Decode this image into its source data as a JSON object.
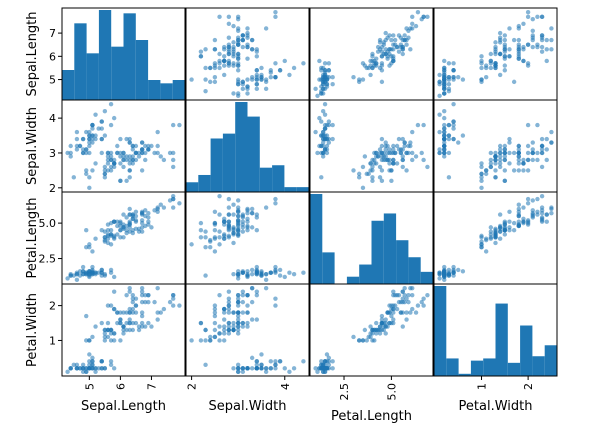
{
  "chart_data": {
    "type": "scatter_matrix",
    "variables": [
      "Sepal.Length",
      "Sepal.Width",
      "Petal.Length",
      "Petal.Width"
    ],
    "color": "#1f77b4",
    "ranges": [
      [
        4.3,
        7.9
      ],
      [
        2.0,
        4.4
      ],
      [
        1.0,
        6.9
      ],
      [
        0.1,
        2.5
      ]
    ],
    "row_ticks": [
      {
        "values": [
          5,
          6,
          7
        ],
        "labels": [
          "5",
          "6",
          "7"
        ]
      },
      {
        "values": [
          2,
          3,
          4
        ],
        "labels": [
          "2",
          "3",
          "4"
        ]
      },
      {
        "values": [
          2.5,
          5.0
        ],
        "labels": [
          "2.5",
          "5.0"
        ]
      },
      {
        "values": [
          1,
          2
        ],
        "labels": [
          "1",
          "2"
        ]
      }
    ],
    "col_ticks": [
      {
        "values": [
          5,
          6,
          7
        ],
        "labels": [
          "5",
          "6",
          "7"
        ]
      },
      {
        "values": [
          2,
          4
        ],
        "labels": [
          "2",
          "4"
        ]
      },
      {
        "values": [
          2.5,
          5.0
        ],
        "labels": [
          "2.5",
          "5.0"
        ]
      },
      {
        "values": [
          1,
          2
        ],
        "labels": [
          "1",
          "2"
        ]
      }
    ],
    "histograms": [
      {
        "variable": "Sepal.Length",
        "counts": [
          9,
          23,
          14,
          27,
          16,
          26,
          18,
          6,
          5,
          6
        ]
      },
      {
        "variable": "Sepal.Width",
        "counts": [
          4,
          7,
          22,
          24,
          37,
          31,
          10,
          11,
          2,
          2
        ]
      },
      {
        "variable": "Petal.Length",
        "counts": [
          37,
          13,
          0,
          3,
          8,
          26,
          29,
          18,
          11,
          5
        ]
      },
      {
        "variable": "Petal.Width",
        "counts": [
          41,
          8,
          1,
          7,
          8,
          33,
          6,
          23,
          9,
          14
        ]
      }
    ],
    "observations": [
      [
        5.1,
        3.5,
        1.4,
        0.2
      ],
      [
        4.9,
        3.0,
        1.4,
        0.2
      ],
      [
        4.7,
        3.2,
        1.3,
        0.2
      ],
      [
        4.6,
        3.1,
        1.5,
        0.2
      ],
      [
        5.0,
        3.6,
        1.4,
        0.2
      ],
      [
        5.4,
        3.9,
        1.7,
        0.4
      ],
      [
        4.6,
        3.4,
        1.4,
        0.3
      ],
      [
        5.0,
        3.4,
        1.5,
        0.2
      ],
      [
        4.4,
        2.9,
        1.4,
        0.2
      ],
      [
        4.9,
        3.1,
        1.5,
        0.1
      ],
      [
        5.4,
        3.7,
        1.5,
        0.2
      ],
      [
        4.8,
        3.4,
        1.6,
        0.2
      ],
      [
        4.8,
        3.0,
        1.4,
        0.1
      ],
      [
        4.3,
        3.0,
        1.1,
        0.1
      ],
      [
        5.8,
        4.0,
        1.2,
        0.2
      ],
      [
        5.7,
        4.4,
        1.5,
        0.4
      ],
      [
        5.4,
        3.9,
        1.3,
        0.4
      ],
      [
        5.1,
        3.5,
        1.4,
        0.3
      ],
      [
        5.7,
        3.8,
        1.7,
        0.3
      ],
      [
        5.1,
        3.8,
        1.5,
        0.3
      ],
      [
        5.4,
        3.4,
        1.7,
        0.2
      ],
      [
        5.1,
        3.7,
        1.5,
        0.4
      ],
      [
        4.6,
        3.6,
        1.0,
        0.2
      ],
      [
        5.1,
        3.3,
        1.7,
        0.5
      ],
      [
        4.8,
        3.4,
        1.9,
        0.2
      ],
      [
        5.0,
        3.0,
        1.6,
        0.2
      ],
      [
        5.0,
        3.4,
        1.6,
        0.4
      ],
      [
        5.2,
        3.5,
        1.5,
        0.2
      ],
      [
        5.2,
        3.4,
        1.4,
        0.2
      ],
      [
        4.7,
        3.2,
        1.6,
        0.2
      ],
      [
        4.8,
        3.1,
        1.6,
        0.2
      ],
      [
        5.4,
        3.4,
        1.5,
        0.4
      ],
      [
        5.2,
        4.1,
        1.5,
        0.1
      ],
      [
        5.5,
        4.2,
        1.4,
        0.2
      ],
      [
        4.9,
        3.1,
        1.5,
        0.2
      ],
      [
        5.0,
        3.2,
        1.2,
        0.2
      ],
      [
        5.5,
        3.5,
        1.3,
        0.2
      ],
      [
        4.9,
        3.6,
        1.4,
        0.1
      ],
      [
        4.4,
        3.0,
        1.3,
        0.2
      ],
      [
        5.1,
        3.4,
        1.5,
        0.2
      ],
      [
        5.0,
        3.5,
        1.3,
        0.3
      ],
      [
        4.5,
        2.3,
        1.3,
        0.3
      ],
      [
        4.4,
        3.2,
        1.3,
        0.2
      ],
      [
        5.0,
        3.5,
        1.6,
        0.6
      ],
      [
        5.1,
        3.8,
        1.9,
        0.4
      ],
      [
        4.8,
        3.0,
        1.4,
        0.3
      ],
      [
        5.1,
        3.8,
        1.6,
        0.2
      ],
      [
        4.6,
        3.2,
        1.4,
        0.2
      ],
      [
        5.3,
        3.7,
        1.5,
        0.2
      ],
      [
        5.0,
        3.3,
        1.4,
        0.2
      ],
      [
        7.0,
        3.2,
        4.7,
        1.4
      ],
      [
        6.4,
        3.2,
        4.5,
        1.5
      ],
      [
        6.9,
        3.1,
        4.9,
        1.5
      ],
      [
        5.5,
        2.3,
        4.0,
        1.3
      ],
      [
        6.5,
        2.8,
        4.6,
        1.5
      ],
      [
        5.7,
        2.8,
        4.5,
        1.3
      ],
      [
        6.3,
        3.3,
        4.7,
        1.6
      ],
      [
        4.9,
        2.4,
        3.3,
        1.0
      ],
      [
        6.6,
        2.9,
        4.6,
        1.3
      ],
      [
        5.2,
        2.7,
        3.9,
        1.4
      ],
      [
        5.0,
        2.0,
        3.5,
        1.0
      ],
      [
        5.9,
        3.0,
        4.2,
        1.5
      ],
      [
        6.0,
        2.2,
        4.0,
        1.0
      ],
      [
        6.1,
        2.9,
        4.7,
        1.4
      ],
      [
        5.6,
        2.9,
        3.6,
        1.3
      ],
      [
        6.7,
        3.1,
        4.4,
        1.4
      ],
      [
        5.6,
        3.0,
        4.5,
        1.5
      ],
      [
        5.8,
        2.7,
        4.1,
        1.0
      ],
      [
        6.2,
        2.2,
        4.5,
        1.5
      ],
      [
        5.6,
        2.5,
        3.9,
        1.1
      ],
      [
        5.9,
        3.2,
        4.8,
        1.8
      ],
      [
        6.1,
        2.8,
        4.0,
        1.3
      ],
      [
        6.3,
        2.5,
        4.9,
        1.5
      ],
      [
        6.1,
        2.8,
        4.7,
        1.2
      ],
      [
        6.4,
        2.9,
        4.3,
        1.3
      ],
      [
        6.6,
        3.0,
        4.4,
        1.4
      ],
      [
        6.8,
        2.8,
        4.8,
        1.4
      ],
      [
        6.7,
        3.0,
        5.0,
        1.7
      ],
      [
        6.0,
        2.9,
        4.5,
        1.5
      ],
      [
        5.7,
        2.6,
        3.5,
        1.0
      ],
      [
        5.5,
        2.4,
        3.8,
        1.1
      ],
      [
        5.5,
        2.4,
        3.7,
        1.0
      ],
      [
        5.8,
        2.7,
        3.9,
        1.2
      ],
      [
        6.0,
        2.7,
        5.1,
        1.6
      ],
      [
        5.4,
        3.0,
        4.5,
        1.5
      ],
      [
        6.0,
        3.4,
        4.5,
        1.6
      ],
      [
        6.7,
        3.1,
        4.7,
        1.5
      ],
      [
        6.3,
        2.3,
        4.4,
        1.3
      ],
      [
        5.6,
        3.0,
        4.1,
        1.3
      ],
      [
        5.5,
        2.5,
        4.0,
        1.3
      ],
      [
        5.5,
        2.6,
        4.4,
        1.2
      ],
      [
        6.1,
        3.0,
        4.6,
        1.4
      ],
      [
        5.8,
        2.6,
        4.0,
        1.2
      ],
      [
        5.0,
        2.3,
        3.3,
        1.0
      ],
      [
        5.6,
        2.7,
        4.2,
        1.3
      ],
      [
        5.7,
        3.0,
        4.2,
        1.2
      ],
      [
        5.7,
        2.9,
        4.2,
        1.3
      ],
      [
        6.2,
        2.9,
        4.3,
        1.3
      ],
      [
        5.1,
        2.5,
        3.0,
        1.1
      ],
      [
        5.7,
        2.8,
        4.1,
        1.3
      ],
      [
        6.3,
        3.3,
        6.0,
        2.5
      ],
      [
        5.8,
        2.7,
        5.1,
        1.9
      ],
      [
        7.1,
        3.0,
        5.9,
        2.1
      ],
      [
        6.3,
        2.9,
        5.6,
        1.8
      ],
      [
        6.5,
        3.0,
        5.8,
        2.2
      ],
      [
        7.6,
        3.0,
        6.6,
        2.1
      ],
      [
        4.9,
        2.5,
        4.5,
        1.7
      ],
      [
        7.3,
        2.9,
        6.3,
        1.8
      ],
      [
        6.7,
        2.5,
        5.8,
        1.8
      ],
      [
        7.2,
        3.6,
        6.1,
        2.5
      ],
      [
        6.5,
        3.2,
        5.1,
        2.0
      ],
      [
        6.4,
        2.7,
        5.3,
        1.9
      ],
      [
        6.8,
        3.0,
        5.5,
        2.1
      ],
      [
        5.7,
        2.5,
        5.0,
        2.0
      ],
      [
        5.8,
        2.8,
        5.1,
        2.4
      ],
      [
        6.4,
        3.2,
        5.3,
        2.3
      ],
      [
        6.5,
        3.0,
        5.5,
        1.8
      ],
      [
        7.7,
        3.8,
        6.7,
        2.2
      ],
      [
        7.7,
        2.6,
        6.9,
        2.3
      ],
      [
        6.0,
        2.2,
        5.0,
        1.5
      ],
      [
        6.9,
        3.2,
        5.7,
        2.3
      ],
      [
        5.6,
        2.8,
        4.9,
        2.0
      ],
      [
        7.7,
        2.8,
        6.7,
        2.0
      ],
      [
        6.3,
        2.7,
        4.9,
        1.8
      ],
      [
        6.7,
        3.3,
        5.7,
        2.1
      ],
      [
        7.2,
        3.2,
        6.0,
        1.8
      ],
      [
        6.2,
        2.8,
        4.8,
        1.8
      ],
      [
        6.1,
        3.0,
        4.9,
        1.8
      ],
      [
        6.4,
        2.8,
        5.6,
        2.1
      ],
      [
        7.2,
        3.0,
        5.8,
        1.6
      ],
      [
        7.4,
        2.8,
        6.1,
        1.9
      ],
      [
        7.9,
        3.8,
        6.4,
        2.0
      ],
      [
        6.4,
        2.8,
        5.6,
        2.2
      ],
      [
        6.3,
        2.8,
        5.1,
        1.5
      ],
      [
        6.1,
        2.6,
        5.6,
        1.4
      ],
      [
        7.7,
        3.0,
        6.1,
        2.3
      ],
      [
        6.3,
        3.4,
        5.6,
        2.4
      ],
      [
        6.4,
        3.1,
        5.5,
        1.8
      ],
      [
        6.0,
        3.0,
        4.8,
        1.8
      ],
      [
        6.9,
        3.1,
        5.4,
        2.1
      ],
      [
        6.7,
        3.1,
        5.6,
        2.4
      ],
      [
        6.9,
        3.1,
        5.1,
        2.3
      ],
      [
        5.8,
        2.7,
        5.1,
        1.9
      ],
      [
        6.8,
        3.2,
        5.9,
        2.3
      ],
      [
        6.7,
        3.3,
        5.7,
        2.5
      ],
      [
        6.7,
        3.0,
        5.2,
        2.3
      ],
      [
        6.3,
        2.5,
        5.0,
        1.9
      ],
      [
        6.5,
        3.0,
        5.2,
        2.0
      ],
      [
        6.2,
        3.4,
        5.4,
        2.3
      ],
      [
        5.9,
        3.0,
        5.1,
        1.8
      ]
    ]
  }
}
